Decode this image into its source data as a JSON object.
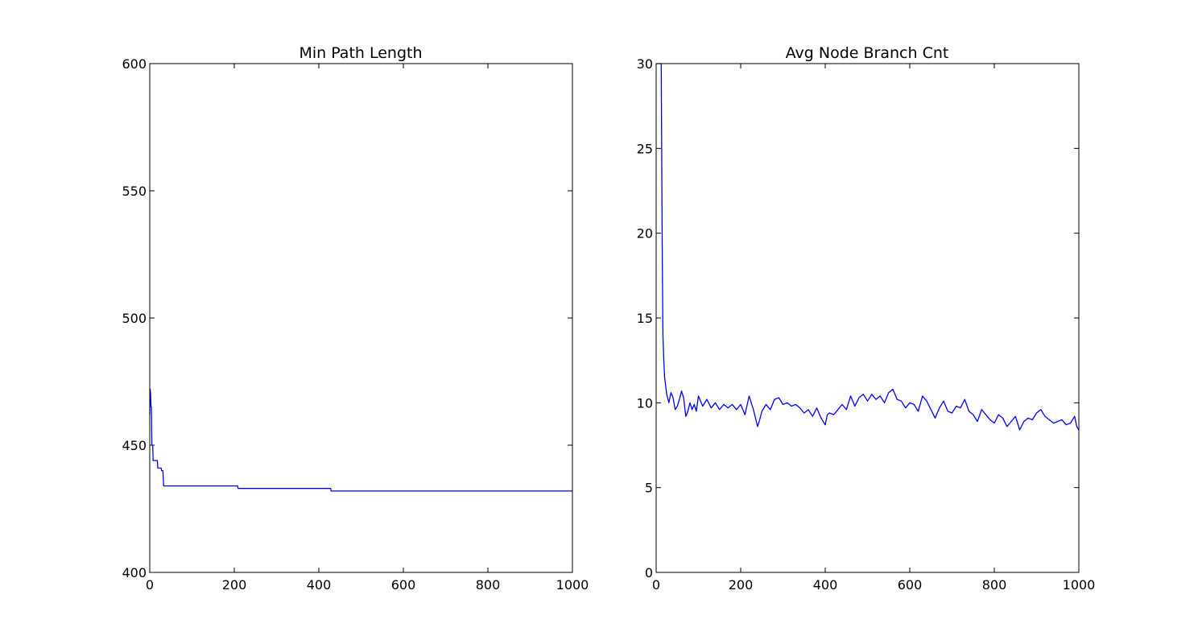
{
  "chart_data": [
    {
      "type": "line",
      "title": "Min Path Length",
      "xlabel": "",
      "ylabel": "",
      "xlim": [
        0,
        1000
      ],
      "ylim": [
        400,
        600
      ],
      "xticks": [
        0,
        200,
        400,
        600,
        800,
        1000
      ],
      "yticks": [
        400,
        450,
        500,
        550,
        600
      ],
      "grid": false,
      "legend": null,
      "color": "#0000ff",
      "series": [
        {
          "x": [
            0,
            1,
            2,
            3,
            4,
            5,
            7,
            8,
            9,
            18,
            19,
            27,
            28,
            31,
            33,
            208,
            209,
            428,
            429,
            1000
          ],
          "y": [
            462,
            472,
            470,
            465,
            465,
            450,
            450,
            444,
            444,
            444,
            441,
            441,
            440,
            440,
            434,
            434,
            433,
            433,
            432,
            432
          ]
        }
      ]
    },
    {
      "type": "line",
      "title": "Avg Node Branch Cnt",
      "xlabel": "",
      "ylabel": "",
      "xlim": [
        0,
        1000
      ],
      "ylim": [
        0,
        30
      ],
      "xticks": [
        0,
        200,
        400,
        600,
        800,
        1000
      ],
      "yticks": [
        0,
        5,
        10,
        15,
        20,
        25,
        30
      ],
      "grid": false,
      "legend": null,
      "color": "#0000ff",
      "series": [
        {
          "x": [
            0,
            2,
            4,
            6,
            8,
            10,
            12,
            14,
            16,
            18,
            20,
            25,
            30,
            35,
            40,
            45,
            50,
            55,
            60,
            65,
            70,
            75,
            80,
            85,
            90,
            95,
            100,
            110,
            120,
            130,
            140,
            150,
            160,
            170,
            180,
            190,
            200,
            210,
            220,
            230,
            240,
            245,
            250,
            260,
            270,
            280,
            290,
            300,
            310,
            320,
            330,
            340,
            350,
            360,
            370,
            380,
            390,
            400,
            405,
            410,
            420,
            430,
            440,
            450,
            460,
            470,
            480,
            490,
            500,
            510,
            520,
            530,
            540,
            550,
            560,
            570,
            580,
            590,
            600,
            610,
            620,
            630,
            640,
            650,
            660,
            670,
            680,
            690,
            700,
            710,
            720,
            730,
            740,
            750,
            760,
            770,
            780,
            790,
            800,
            810,
            820,
            830,
            840,
            850,
            860,
            870,
            880,
            890,
            900,
            910,
            920,
            930,
            940,
            950,
            960,
            970,
            980,
            990,
            995,
            1000
          ],
          "y": [
            30,
            30,
            30,
            30,
            30,
            30,
            30,
            20,
            14,
            12.5,
            11.5,
            10.5,
            10,
            10.6,
            10.3,
            9.6,
            9.8,
            10.2,
            10.7,
            10.3,
            9.2,
            9.5,
            10,
            9.6,
            9.9,
            9.5,
            10.4,
            9.8,
            10.2,
            9.7,
            10,
            9.6,
            9.9,
            9.7,
            9.9,
            9.6,
            9.9,
            9.3,
            10.4,
            9.6,
            8.6,
            9,
            9.5,
            9.9,
            9.6,
            10.2,
            10.3,
            9.9,
            10,
            9.8,
            9.9,
            9.7,
            9.4,
            9.6,
            9.2,
            9.7,
            9.1,
            8.7,
            9.3,
            9.4,
            9.3,
            9.6,
            9.9,
            9.6,
            10.4,
            9.8,
            10.3,
            10.5,
            10.1,
            10.5,
            10.2,
            10.4,
            10,
            10.6,
            10.8,
            10.2,
            10.1,
            9.7,
            10,
            9.9,
            9.5,
            10.4,
            10.1,
            9.6,
            9.1,
            9.7,
            10.1,
            9.5,
            9.4,
            9.8,
            9.7,
            10.2,
            9.5,
            9.3,
            8.9,
            9.6,
            9.3,
            9,
            8.8,
            9.3,
            9.1,
            8.6,
            8.9,
            9.2,
            8.4,
            8.9,
            9.1,
            9,
            9.4,
            9.6,
            9.2,
            9,
            8.8,
            8.9,
            9,
            8.7,
            8.8,
            9.2,
            8.6,
            8.4
          ]
        }
      ]
    }
  ]
}
